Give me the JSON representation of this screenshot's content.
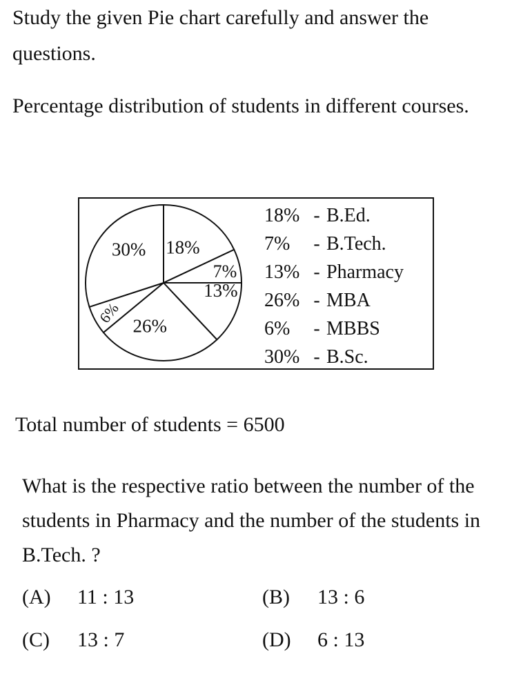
{
  "intro_text": "Study the given Pie chart carefully and answer the questions.",
  "subtitle_text": "Percentage distribution of students in different courses.",
  "chart_data": {
    "type": "pie",
    "title": "",
    "slices": [
      {
        "label": "B.Ed.",
        "value": 18,
        "label_text": "18%"
      },
      {
        "label": "B.Tech.",
        "value": 7,
        "label_text": "7%"
      },
      {
        "label": "Pharmacy",
        "value": 13,
        "label_text": "13%"
      },
      {
        "label": "MBA",
        "value": 26,
        "label_text": "26%"
      },
      {
        "label": "MBBS",
        "value": 6,
        "label_text": "6%"
      },
      {
        "label": "B.Sc.",
        "value": 30,
        "label_text": "30%"
      }
    ],
    "legend": [
      {
        "pct": "18%",
        "name": "B.Ed."
      },
      {
        "pct": "7%",
        "name": "B.Tech."
      },
      {
        "pct": "13%",
        "name": "Pharmacy"
      },
      {
        "pct": "26%",
        "name": "MBA"
      },
      {
        "pct": "6%",
        "name": "MBBS"
      },
      {
        "pct": "30%",
        "name": "B.Sc."
      }
    ],
    "legend_placement": "right",
    "colors": {
      "fill": "#ffffff",
      "stroke": "#111111"
    }
  },
  "total_text": "Total number of students = 6500",
  "question_text": "What is the respective ratio between the number of the students in Pharmacy and the number of the students in B.Tech. ?",
  "options": [
    {
      "label": "(A)",
      "value": "11 : 13"
    },
    {
      "label": "(B)",
      "value": "13 : 6"
    },
    {
      "label": "(C)",
      "value": "13 : 7"
    },
    {
      "label": "(D)",
      "value": "6 : 13"
    }
  ]
}
